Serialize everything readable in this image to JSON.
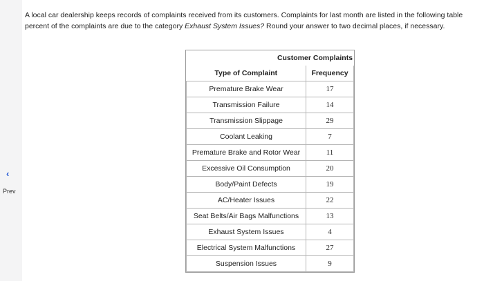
{
  "question": {
    "line1": "A local car dealership keeps records of complaints received from its customers. Complaints for last month are listed in the following table",
    "line2_prefix": "percent of the complaints are due to the category ",
    "line2_italic": "Exhaust System Issues?",
    "line2_suffix": " Round your answer to two decimal places, if necessary."
  },
  "nav": {
    "prev_label": "Prev",
    "prev_icon": "chevron-left-icon"
  },
  "table": {
    "caption": "Customer Complaints",
    "headers": [
      "Type of Complaint",
      "Frequency"
    ],
    "rows": [
      [
        "Premature Brake Wear",
        "17"
      ],
      [
        "Transmission Failure",
        "14"
      ],
      [
        "Transmission Slippage",
        "29"
      ],
      [
        "Coolant Leaking",
        "7"
      ],
      [
        "Premature Brake and Rotor Wear",
        "11"
      ],
      [
        "Excessive Oil Consumption",
        "20"
      ],
      [
        "Body/Paint Defects",
        "19"
      ],
      [
        "AC/Heater Issues",
        "22"
      ],
      [
        "Seat Belts/Air Bags Malfunctions",
        "13"
      ],
      [
        "Exhaust System Issues",
        "4"
      ],
      [
        "Electrical System Malfunctions",
        "27"
      ],
      [
        "Suspension Issues",
        "9"
      ]
    ]
  },
  "colors": {
    "accent": "#2458d6",
    "border": "#9a9a9a"
  }
}
